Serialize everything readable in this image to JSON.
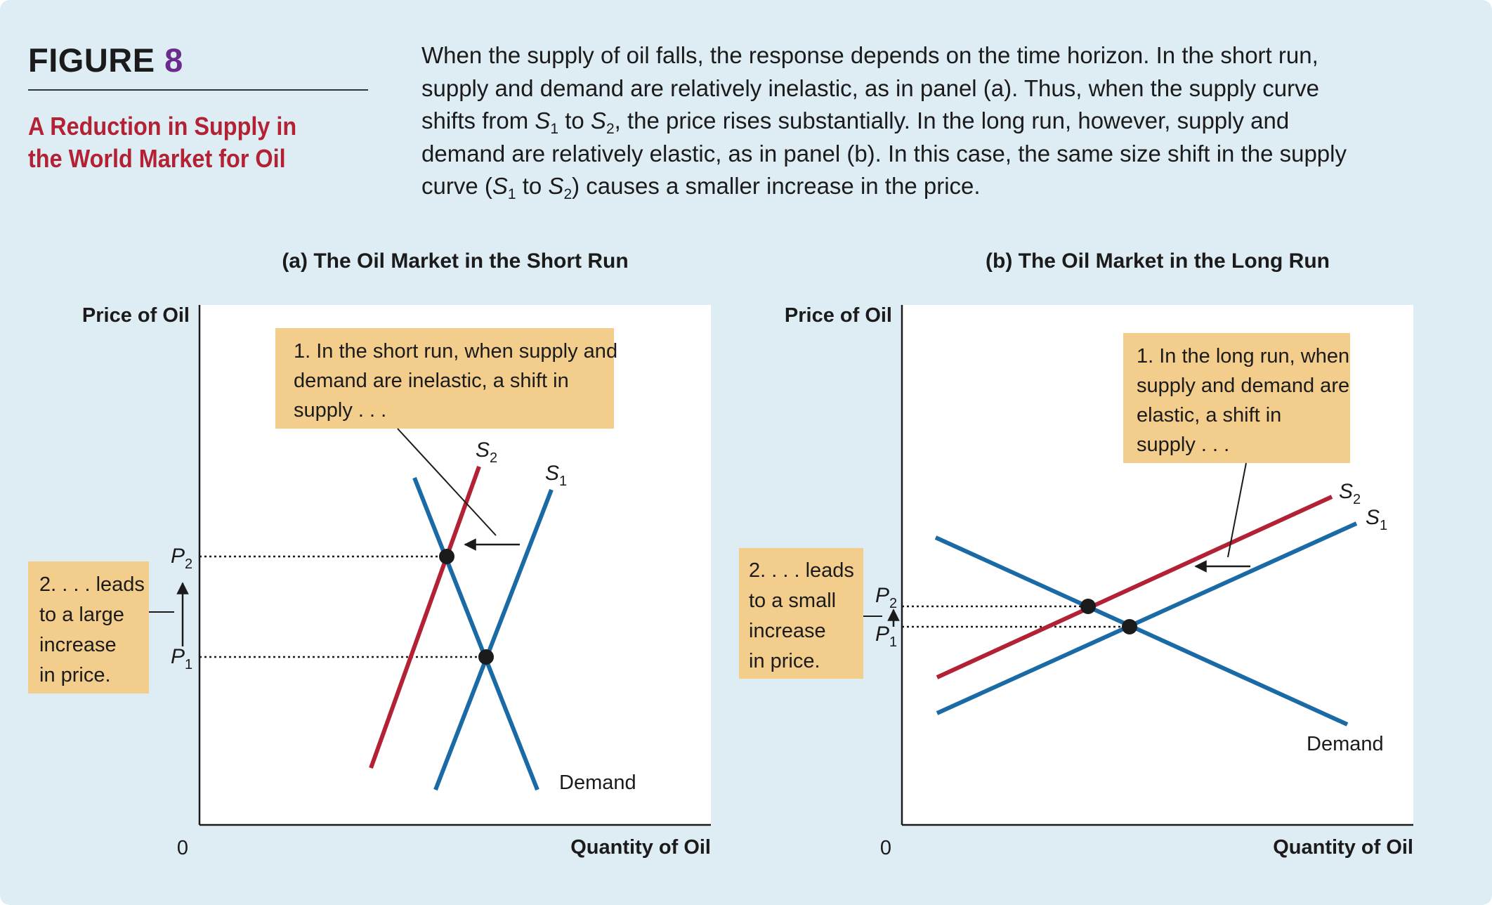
{
  "header": {
    "figure_word": "FIGURE",
    "figure_number": "8",
    "subtitle": "A Reduction in Supply in the World Market for Oil",
    "caption": {
      "line1": "When the supply of oil falls, the response depends on the time horizon. In the short run,",
      "line2": "supply and demand are relatively inelastic, as in panel (a). Thus, when the supply curve",
      "line3_a": "shifts from ",
      "line3_b": " the price rises substantially. In the long run, however, supply and",
      "line4": "demand are relatively elastic, as in panel (b). In this case, the same size shift in the supply",
      "line5_a": "curve (",
      "line5_b": ") causes a smaller increase in the price.",
      "s_symbol": "S",
      "sub1": "1",
      "sub2": "2",
      "to_word": " to ",
      "comma": ","
    }
  },
  "panels": {
    "a": {
      "title": "(a) The Oil Market in the Short Run",
      "y_axis_label": "Price of Oil",
      "x_axis_label": "Quantity of Oil",
      "origin": "0",
      "demand_label": "Demand",
      "s1_label": {
        "letter": "S",
        "sub": "1"
      },
      "s2_label": {
        "letter": "S",
        "sub": "2"
      },
      "p1_label": {
        "letter": "P",
        "sub": "1"
      },
      "p2_label": {
        "letter": "P",
        "sub": "2"
      },
      "annotation_shift": [
        "1. In the short run, when supply and",
        "demand are inelastic, a shift in",
        "supply . . ."
      ],
      "annotation_price": [
        "2. . . . leads",
        "to a large",
        "increase",
        "in price."
      ]
    },
    "b": {
      "title": "(b) The Oil Market in the Long Run",
      "y_axis_label": "Price of Oil",
      "x_axis_label": "Quantity of Oil",
      "origin": "0",
      "demand_label": "Demand",
      "s1_label": {
        "letter": "S",
        "sub": "1"
      },
      "s2_label": {
        "letter": "S",
        "sub": "2"
      },
      "p1_label": {
        "letter": "P",
        "sub": "1"
      },
      "p2_label": {
        "letter": "P",
        "sub": "2"
      },
      "annotation_shift": [
        "1. In the long run, when",
        "supply and demand are",
        "elastic, a shift in",
        "supply . . ."
      ],
      "annotation_price": [
        "2. . . . leads",
        "to a small",
        "increase",
        "in price."
      ]
    }
  },
  "colors": {
    "background": "#deecf4",
    "supply_original": "#1a6aa6",
    "supply_shifted": "#b32134",
    "demand": "#1a6aa6",
    "annotation_box": "#f2cd8c",
    "figure_number": "#6a2b8c",
    "subtitle": "#b32134"
  }
}
